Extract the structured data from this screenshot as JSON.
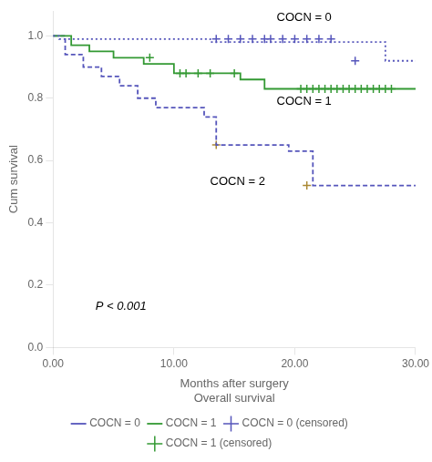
{
  "chart_data": {
    "type": "line",
    "xlabel": "Months after surgery\nOverall survival",
    "ylabel": "Cum survival",
    "xlim": [
      0,
      30
    ],
    "ylim": [
      0.0,
      1.08
    ],
    "xticks": [
      {
        "value": 0,
        "label": "0.00"
      },
      {
        "value": 10,
        "label": "10.00"
      },
      {
        "value": 20,
        "label": "20.00"
      },
      {
        "value": 30,
        "label": "30.00"
      }
    ],
    "yticks": [
      {
        "value": 0,
        "label": "0.0"
      },
      0.2,
      0.4,
      0.6,
      0.8,
      {
        "value": 1,
        "label": "1.0"
      }
    ],
    "grid": false,
    "legend": "bottom",
    "series": [
      {
        "name": "COCN = 0",
        "type": "line",
        "color": "#5555bb",
        "line_style": "dotted",
        "x": [
          0,
          0.5,
          0.5,
          13.0,
          13.0,
          27.5,
          27.5,
          30
        ],
        "values": [
          1.0,
          1.0,
          0.99,
          0.99,
          0.98,
          0.98,
          0.92,
          0.92
        ]
      },
      {
        "name": "COCN = 1",
        "type": "line",
        "color": "#339933",
        "line_style": "solid",
        "x": [
          0,
          1.5,
          1.5,
          3.0,
          3.0,
          5.0,
          5.0,
          7.5,
          7.5,
          10.0,
          10.0,
          15.5,
          15.5,
          17.5,
          17.5,
          20.0,
          20.0,
          30
        ],
        "values": [
          1.0,
          1.0,
          0.97,
          0.97,
          0.95,
          0.95,
          0.93,
          0.93,
          0.91,
          0.91,
          0.88,
          0.88,
          0.86,
          0.86,
          0.83,
          0.83,
          0.83,
          0.83
        ]
      },
      {
        "type": "line",
        "color": "#5555bb",
        "line_style": "dashed",
        "x": [
          0,
          1.0,
          1.0,
          2.5,
          2.5,
          4.0,
          4.0,
          5.5,
          5.5,
          7.0,
          7.0,
          8.5,
          8.5,
          12.5,
          12.5,
          13.5,
          13.5,
          19.5,
          19.5,
          21.5,
          21.5,
          26.0,
          26.0,
          30
        ],
        "values": [
          1.0,
          1.0,
          0.94,
          0.94,
          0.9,
          0.9,
          0.87,
          0.87,
          0.84,
          0.84,
          0.8,
          0.8,
          0.77,
          0.77,
          0.74,
          0.74,
          0.65,
          0.65,
          0.63,
          0.63,
          0.52,
          0.52,
          0.52,
          0.52
        ]
      },
      {
        "name": "COCN = 0 (censored)",
        "type": "scatter",
        "color": "#5555bb",
        "marker": "+",
        "x": [
          13.5,
          14.5,
          15.5,
          16.5,
          17.5,
          18.0,
          19.0,
          20.0,
          21.0,
          22.0,
          23.0,
          25.0
        ],
        "values": [
          0.99,
          0.99,
          0.99,
          0.99,
          0.99,
          0.99,
          0.99,
          0.99,
          0.99,
          0.99,
          0.99,
          0.92
        ]
      },
      {
        "name": "COCN = 1 (censored)",
        "type": "scatter",
        "color": "#339933",
        "marker": "+",
        "x": [
          8.0,
          10.5,
          11.0,
          12.0,
          13.0,
          15.0,
          20.5,
          21.0,
          21.5,
          22.0,
          22.5,
          23.0,
          23.5,
          24.0,
          24.5,
          25.0,
          25.5,
          26.0,
          26.5,
          27.0,
          27.5,
          28.0
        ],
        "values": [
          0.93,
          0.88,
          0.88,
          0.88,
          0.88,
          0.88,
          0.83,
          0.83,
          0.83,
          0.83,
          0.83,
          0.83,
          0.83,
          0.83,
          0.83,
          0.83,
          0.83,
          0.83,
          0.83,
          0.83,
          0.83,
          0.83
        ]
      },
      {
        "type": "scatter",
        "color": "#aa8833",
        "marker": "+",
        "x": [
          13.5,
          21.0
        ],
        "values": [
          0.65,
          0.52
        ]
      }
    ],
    "annotations": [
      {
        "text": "COCN = 0",
        "x": 18.5,
        "y": 1.04
      },
      {
        "text": "COCN = 1",
        "x": 18.5,
        "y": 0.77
      },
      {
        "text": "COCN = 2",
        "x": 13.0,
        "y": 0.55
      }
    ],
    "pvalue": {
      "text": "P < 0.001",
      "x": 3.5,
      "y": 0.12
    }
  }
}
